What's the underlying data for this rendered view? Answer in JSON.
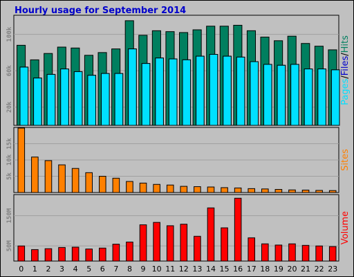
{
  "title": "Hourly usage for September 2014",
  "colors": {
    "hits": "#007f5f",
    "files": "#00e0ff",
    "sites": "#ff8000",
    "volume": "#ff0000",
    "panel_bg": "#c0c0c0",
    "title": "#0000cc"
  },
  "chart_data": [
    {
      "type": "bar",
      "title": "Hourly usage for September 2014",
      "categories": [
        "0",
        "1",
        "2",
        "3",
        "4",
        "5",
        "6",
        "7",
        "8",
        "9",
        "10",
        "11",
        "12",
        "13",
        "14",
        "15",
        "16",
        "17",
        "18",
        "19",
        "20",
        "21",
        "22",
        "23"
      ],
      "series": [
        {
          "name": "Hits",
          "color": "#007f5f",
          "values": [
            88000,
            72000,
            79000,
            86000,
            85000,
            77000,
            80000,
            84000,
            115000,
            99000,
            104000,
            103000,
            102000,
            105000,
            109000,
            109000,
            110000,
            104000,
            97000,
            93000,
            98000,
            90000,
            87000,
            83000
          ]
        },
        {
          "name": "Files",
          "color": "#00e0ff",
          "values": [
            64000,
            52000,
            56000,
            62000,
            59000,
            55000,
            57000,
            57000,
            84000,
            68000,
            74000,
            73000,
            72000,
            76000,
            78000,
            76000,
            75000,
            70000,
            67000,
            66000,
            67000,
            62000,
            62000,
            61000
          ]
        },
        {
          "name": "Pages",
          "color": "#00e0ff",
          "values": [
            64000,
            52000,
            56000,
            62000,
            59000,
            55000,
            57000,
            57000,
            84000,
            68000,
            74000,
            73000,
            72000,
            76000,
            78000,
            76000,
            75000,
            70000,
            67000,
            66000,
            67000,
            62000,
            62000,
            61000
          ]
        }
      ],
      "yticks": [
        "20k",
        "60k",
        "100k"
      ],
      "ylim": [
        0,
        121000
      ],
      "ylabel": {
        "parts": [
          {
            "text": "Pages",
            "color": "#00e0ff"
          },
          {
            "text": "/",
            "color": "#000000"
          },
          {
            "text": "Files",
            "color": "#0000cc"
          },
          {
            "text": "/",
            "color": "#000000"
          },
          {
            "text": "Hits",
            "color": "#007f5f"
          }
        ]
      },
      "grid": true
    },
    {
      "type": "bar",
      "categories": [
        "0",
        "1",
        "2",
        "3",
        "4",
        "5",
        "6",
        "7",
        "8",
        "9",
        "10",
        "11",
        "12",
        "13",
        "14",
        "15",
        "16",
        "17",
        "18",
        "19",
        "20",
        "21",
        "22",
        "23"
      ],
      "series": [
        {
          "name": "Sites",
          "color": "#ff8000",
          "values": [
            19800,
            10900,
            9800,
            8500,
            7400,
            6100,
            5000,
            4400,
            3400,
            2900,
            2500,
            2300,
            1900,
            1800,
            1700,
            1500,
            1400,
            1200,
            1100,
            950,
            800,
            750,
            650,
            600
          ]
        }
      ],
      "yticks": [
        "5k",
        "10k",
        "15k"
      ],
      "ylim": [
        0,
        20000
      ],
      "ylabel": {
        "parts": [
          {
            "text": "Sites",
            "color": "#ff8000"
          }
        ]
      },
      "grid": true
    },
    {
      "type": "bar",
      "categories": [
        "0",
        "1",
        "2",
        "3",
        "4",
        "5",
        "6",
        "7",
        "8",
        "9",
        "10",
        "11",
        "12",
        "13",
        "14",
        "15",
        "16",
        "17",
        "18",
        "19",
        "20",
        "21",
        "22",
        "23"
      ],
      "series": [
        {
          "name": "Volume",
          "color": "#ff0000",
          "values": [
            50,
            38,
            41,
            45,
            46,
            40,
            43,
            56,
            63,
            120,
            128,
            117,
            122,
            82,
            176,
            110,
            208,
            77,
            57,
            53,
            57,
            52,
            50,
            48
          ]
        }
      ],
      "yticks": [
        "50M",
        "150M"
      ],
      "ylim": [
        0,
        220
      ],
      "ylabel": {
        "parts": [
          {
            "text": "Volume",
            "color": "#ff0000"
          }
        ]
      },
      "grid": true
    }
  ]
}
